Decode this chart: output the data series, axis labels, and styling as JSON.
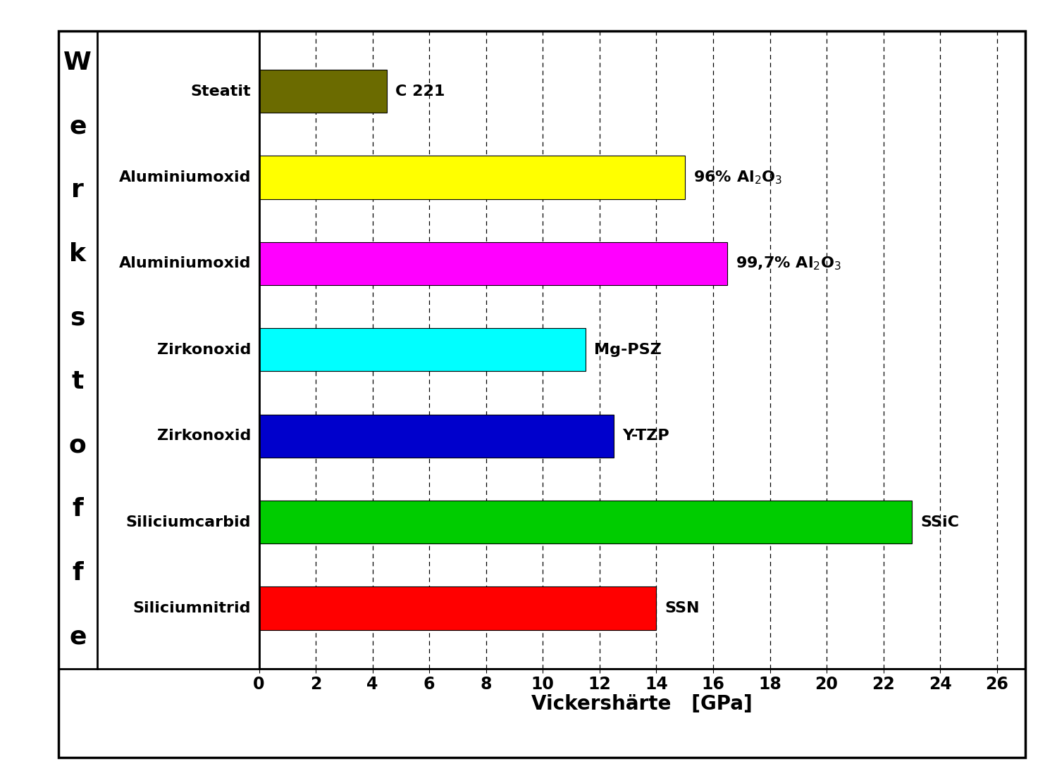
{
  "categories": [
    "Steatit",
    "Aluminiumoxid",
    "Aluminiumoxid",
    "Zirkonoxid",
    "Zirkonoxid",
    "Siliciumcarbid",
    "Siliciumnitrid"
  ],
  "values": [
    4.5,
    15.0,
    16.5,
    11.5,
    12.5,
    23.0,
    14.0
  ],
  "labels_rendered": [
    "C 221",
    "96% Al$_2$O$_3$",
    "99,7% Al$_2$O$_3$",
    "Mg-PSZ",
    "Y-TZP",
    "SSiC",
    "SSN"
  ],
  "colors": [
    "#6B6B00",
    "#FFFF00",
    "#FF00FF",
    "#00FFFF",
    "#0000CC",
    "#00CC00",
    "#FF0000"
  ],
  "xlabel": "Vickershärte   [GPa]",
  "werkstoffe_letters": [
    "W",
    "e",
    "r",
    "k",
    "s",
    "t",
    "o",
    "f",
    "f",
    "e"
  ],
  "xlim": [
    0,
    27
  ],
  "xticks": [
    0,
    2,
    4,
    6,
    8,
    10,
    12,
    14,
    16,
    18,
    20,
    22,
    24,
    26
  ],
  "bar_height": 0.5,
  "fig_width": 15.0,
  "fig_height": 10.98,
  "background_color": "#FFFFFF"
}
